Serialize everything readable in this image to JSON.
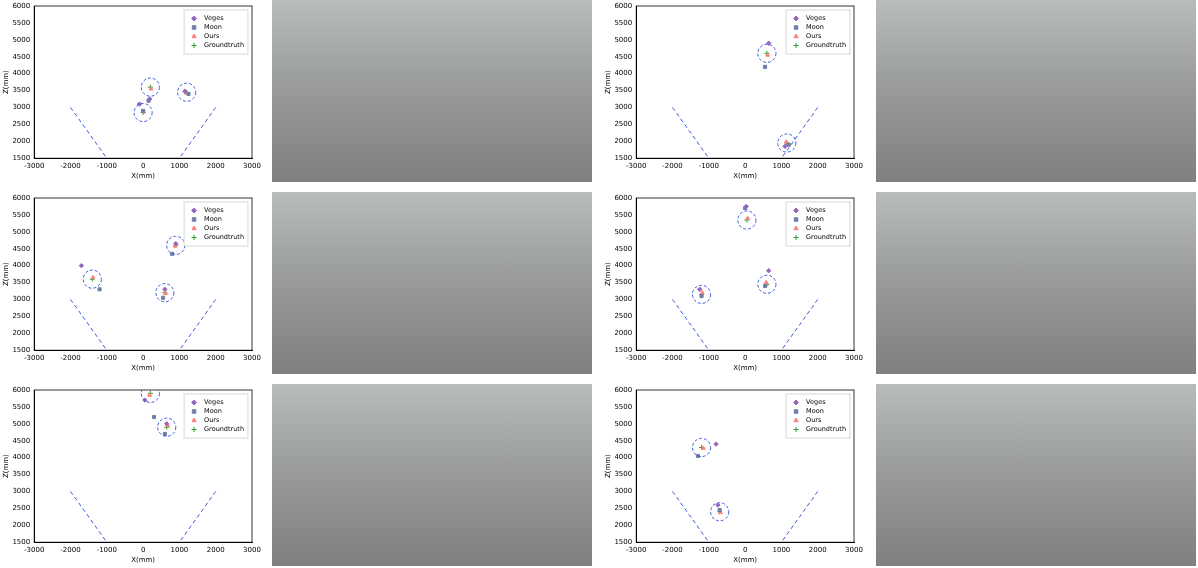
{
  "chart_data": [
    {
      "type": "scatter",
      "x_label": "X(mm)",
      "y_label": "Z(mm)",
      "xlim": [
        -3000,
        3000
      ],
      "xticks": [
        -3000,
        -2000,
        -1000,
        0,
        1000,
        2000,
        3000
      ],
      "ylim": [
        1500,
        6000
      ],
      "yticks": [
        1500,
        2000,
        2500,
        3000,
        3500,
        4000,
        4500,
        5000,
        5500,
        6000
      ],
      "grid": false,
      "legend": "upper right",
      "circle_radius": 250,
      "camera_lines": {
        "color": "#3b5bdb",
        "line_style": "dashed",
        "values": [
          [
            [
              -2000,
              3000
            ],
            [
              -1000,
              1500
            ]
          ],
          [
            [
              2000,
              3000
            ],
            [
              1000,
              1500
            ]
          ]
        ]
      },
      "series": [
        {
          "name": "Veges",
          "color": "#9467bd",
          "marker": "diamond",
          "values": [
            [
              180,
              3250
            ],
            [
              1150,
              3480
            ],
            [
              -100,
              3100
            ]
          ]
        },
        {
          "name": "Moon",
          "color": "#6f7fa8",
          "marker": "square",
          "values": [
            [
              150,
              3200
            ],
            [
              1250,
              3400
            ],
            [
              0,
              2900
            ]
          ]
        },
        {
          "name": "Ours",
          "color": "#ff7f7f",
          "marker": "triangle",
          "values": [
            [
              220,
              3550
            ],
            [
              1180,
              3430
            ],
            [
              20,
              2870
            ]
          ]
        },
        {
          "name": "Groundtruth",
          "color": "#2ca02c",
          "marker": "plus",
          "values": [
            [
              200,
              3600
            ],
            [
              1200,
              3450
            ],
            [
              0,
              2850
            ]
          ]
        }
      ]
    },
    {
      "type": "scatter",
      "x_label": "X(mm)",
      "y_label": "Z(mm)",
      "xlim": [
        -3000,
        3000
      ],
      "xticks": [
        -3000,
        -2000,
        -1000,
        0,
        1000,
        2000,
        3000
      ],
      "ylim": [
        1500,
        6000
      ],
      "yticks": [
        1500,
        2000,
        2500,
        3000,
        3500,
        4000,
        4500,
        5000,
        5500,
        6000
      ],
      "grid": false,
      "legend": "upper right",
      "circle_radius": 250,
      "camera_lines": {
        "color": "#3b5bdb",
        "line_style": "dashed",
        "values": [
          [
            [
              -2000,
              3000
            ],
            [
              -1000,
              1500
            ]
          ],
          [
            [
              2000,
              3000
            ],
            [
              1000,
              1500
            ]
          ]
        ]
      },
      "series": [
        {
          "name": "Veges",
          "color": "#9467bd",
          "marker": "diamond",
          "values": [
            [
              650,
              4900
            ],
            [
              1100,
              1850
            ]
          ]
        },
        {
          "name": "Moon",
          "color": "#6f7fa8",
          "marker": "square",
          "values": [
            [
              550,
              4200
            ],
            [
              1200,
              1900
            ]
          ]
        },
        {
          "name": "Ours",
          "color": "#ff7f7f",
          "marker": "triangle",
          "values": [
            [
              620,
              4550
            ],
            [
              1130,
              1980
            ]
          ]
        },
        {
          "name": "Groundtruth",
          "color": "#2ca02c",
          "marker": "plus",
          "values": [
            [
              600,
              4600
            ],
            [
              1150,
              1950
            ]
          ]
        }
      ]
    },
    {
      "type": "scatter",
      "x_label": "X(mm)",
      "y_label": "Z(mm)",
      "xlim": [
        -3000,
        3000
      ],
      "xticks": [
        -3000,
        -2000,
        -1000,
        0,
        1000,
        2000,
        3000
      ],
      "ylim": [
        1500,
        6000
      ],
      "yticks": [
        1500,
        2000,
        2500,
        3000,
        3500,
        4000,
        4500,
        5000,
        5500,
        6000
      ],
      "grid": false,
      "legend": "upper right",
      "circle_radius": 250,
      "camera_lines": {
        "color": "#3b5bdb",
        "line_style": "dashed",
        "values": [
          [
            [
              -2000,
              3000
            ],
            [
              -1000,
              1500
            ]
          ],
          [
            [
              2000,
              3000
            ],
            [
              1000,
              1500
            ]
          ]
        ]
      },
      "series": [
        {
          "name": "Veges",
          "color": "#9467bd",
          "marker": "diamond",
          "values": [
            [
              -1700,
              4000
            ],
            [
              900,
              4650
            ],
            [
              600,
              3300
            ]
          ]
        },
        {
          "name": "Moon",
          "color": "#6f7fa8",
          "marker": "square",
          "values": [
            [
              -1200,
              3300
            ],
            [
              800,
              4350
            ],
            [
              550,
              3050
            ]
          ]
        },
        {
          "name": "Ours",
          "color": "#ff7f7f",
          "marker": "triangle",
          "values": [
            [
              -1380,
              3650
            ],
            [
              880,
              4580
            ],
            [
              620,
              3180
            ]
          ]
        },
        {
          "name": "Groundtruth",
          "color": "#2ca02c",
          "marker": "plus",
          "values": [
            [
              -1400,
              3600
            ],
            [
              900,
              4600
            ],
            [
              600,
              3200
            ]
          ]
        }
      ]
    },
    {
      "type": "scatter",
      "x_label": "X(mm)",
      "y_label": "Z(mm)",
      "xlim": [
        -3000,
        3000
      ],
      "xticks": [
        -3000,
        -2000,
        -1000,
        0,
        1000,
        2000,
        3000
      ],
      "ylim": [
        1500,
        6000
      ],
      "yticks": [
        1500,
        2000,
        2500,
        3000,
        3500,
        4000,
        4500,
        5000,
        5500,
        6000
      ],
      "grid": false,
      "legend": "upper right",
      "circle_radius": 250,
      "camera_lines": {
        "color": "#3b5bdb",
        "line_style": "dashed",
        "values": [
          [
            [
              -2000,
              3000
            ],
            [
              -1000,
              1500
            ]
          ],
          [
            [
              2000,
              3000
            ],
            [
              1000,
              1500
            ]
          ]
        ]
      },
      "series": [
        {
          "name": "Veges",
          "color": "#9467bd",
          "marker": "diamond",
          "values": [
            [
              30,
              5750
            ],
            [
              -1250,
              3300
            ],
            [
              650,
              3850
            ]
          ]
        },
        {
          "name": "Moon",
          "color": "#6f7fa8",
          "marker": "square",
          "values": [
            [
              0,
              5700
            ],
            [
              -1200,
              3100
            ],
            [
              550,
              3400
            ]
          ]
        },
        {
          "name": "Ours",
          "color": "#ff7f7f",
          "marker": "triangle",
          "values": [
            [
              70,
              5400
            ],
            [
              -1180,
              3200
            ],
            [
              580,
              3500
            ]
          ]
        },
        {
          "name": "Groundtruth",
          "color": "#2ca02c",
          "marker": "plus",
          "values": [
            [
              50,
              5350
            ],
            [
              -1200,
              3150
            ],
            [
              600,
              3450
            ]
          ]
        }
      ]
    },
    {
      "type": "scatter",
      "x_label": "X(mm)",
      "y_label": "Z(mm)",
      "xlim": [
        -3000,
        3000
      ],
      "xticks": [
        -3000,
        -2000,
        -1000,
        0,
        1000,
        2000,
        3000
      ],
      "ylim": [
        1500,
        6000
      ],
      "yticks": [
        1500,
        2000,
        2500,
        3000,
        3500,
        4000,
        4500,
        5000,
        5500,
        6000
      ],
      "grid": false,
      "legend": "upper right",
      "circle_radius": 250,
      "camera_lines": {
        "color": "#3b5bdb",
        "line_style": "dashed",
        "values": [
          [
            [
              -2000,
              3000
            ],
            [
              -1000,
              1500
            ]
          ],
          [
            [
              2000,
              3000
            ],
            [
              1000,
              1500
            ]
          ]
        ]
      },
      "series": [
        {
          "name": "Veges",
          "color": "#9467bd",
          "marker": "diamond",
          "values": [
            [
              50,
              5700
            ],
            [
              650,
              5000
            ]
          ]
        },
        {
          "name": "Moon",
          "color": "#6f7fa8",
          "marker": "square",
          "values": [
            [
              300,
              5200
            ],
            [
              600,
              4700
            ]
          ]
        },
        {
          "name": "Ours",
          "color": "#ff7f7f",
          "marker": "triangle",
          "values": [
            [
              180,
              5850
            ],
            [
              680,
              4950
            ]
          ]
        },
        {
          "name": "Groundtruth",
          "color": "#2ca02c",
          "marker": "plus",
          "values": [
            [
              200,
              5900
            ],
            [
              650,
              4900
            ]
          ]
        }
      ]
    },
    {
      "type": "scatter",
      "x_label": "X(mm)",
      "y_label": "Z(mm)",
      "xlim": [
        -3000,
        3000
      ],
      "xticks": [
        -3000,
        -2000,
        -1000,
        0,
        1000,
        2000,
        3000
      ],
      "ylim": [
        1500,
        6000
      ],
      "yticks": [
        1500,
        2000,
        2500,
        3000,
        3500,
        4000,
        4500,
        5000,
        5500,
        6000
      ],
      "grid": false,
      "legend": "upper right",
      "circle_radius": 250,
      "camera_lines": {
        "color": "#3b5bdb",
        "line_style": "dashed",
        "values": [
          [
            [
              -2000,
              3000
            ],
            [
              -1000,
              1500
            ]
          ],
          [
            [
              2000,
              3000
            ],
            [
              1000,
              1500
            ]
          ]
        ]
      },
      "series": [
        {
          "name": "Veges",
          "color": "#9467bd",
          "marker": "diamond",
          "values": [
            [
              -800,
              4400
            ],
            [
              -750,
              2600
            ]
          ]
        },
        {
          "name": "Moon",
          "color": "#6f7fa8",
          "marker": "square",
          "values": [
            [
              -1300,
              4050
            ],
            [
              -700,
              2450
            ]
          ]
        },
        {
          "name": "Ours",
          "color": "#ff7f7f",
          "marker": "triangle",
          "values": [
            [
              -1150,
              4280
            ],
            [
              -680,
              2380
            ]
          ]
        },
        {
          "name": "Groundtruth",
          "color": "#2ca02c",
          "marker": "plus",
          "values": [
            [
              -1200,
              4300
            ],
            [
              -700,
              2400
            ]
          ]
        }
      ]
    }
  ]
}
